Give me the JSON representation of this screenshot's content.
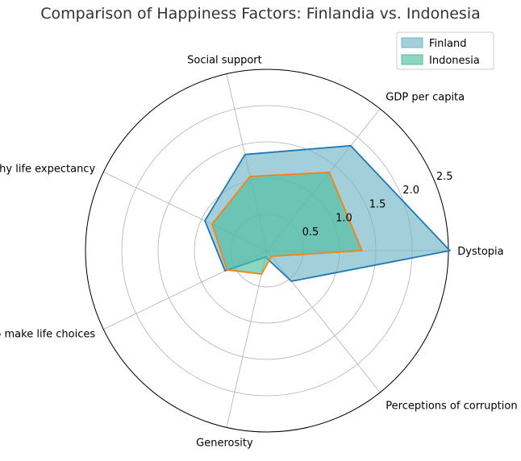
{
  "chart_data": {
    "type": "radar",
    "title": "Comparison of Happiness Factors: Finlandia vs. Indonesia",
    "categories": [
      "Dystopia",
      "GDP per capita",
      "Social support",
      "Healthy life expectancy",
      "Freedom to make life choices",
      "Generosity",
      "Perceptions of corruption"
    ],
    "series": [
      {
        "name": "Finland",
        "values": [
          2.52,
          1.85,
          1.36,
          0.95,
          0.64,
          0.09,
          0.54
        ],
        "line_color": "#1f77b4",
        "fill_color": "#72b5c8"
      },
      {
        "name": "Indonesia",
        "values": [
          1.31,
          1.38,
          1.05,
          0.84,
          0.61,
          0.33,
          0.1
        ],
        "line_color": "#ff7f0e",
        "fill_color": "#4dbfa0"
      }
    ],
    "rlim": [
      0,
      2.5
    ],
    "rticks": [
      "0.5",
      "1.0",
      "1.5",
      "2.0",
      "2.5"
    ],
    "grid": true,
    "legend_position": "top-right"
  }
}
